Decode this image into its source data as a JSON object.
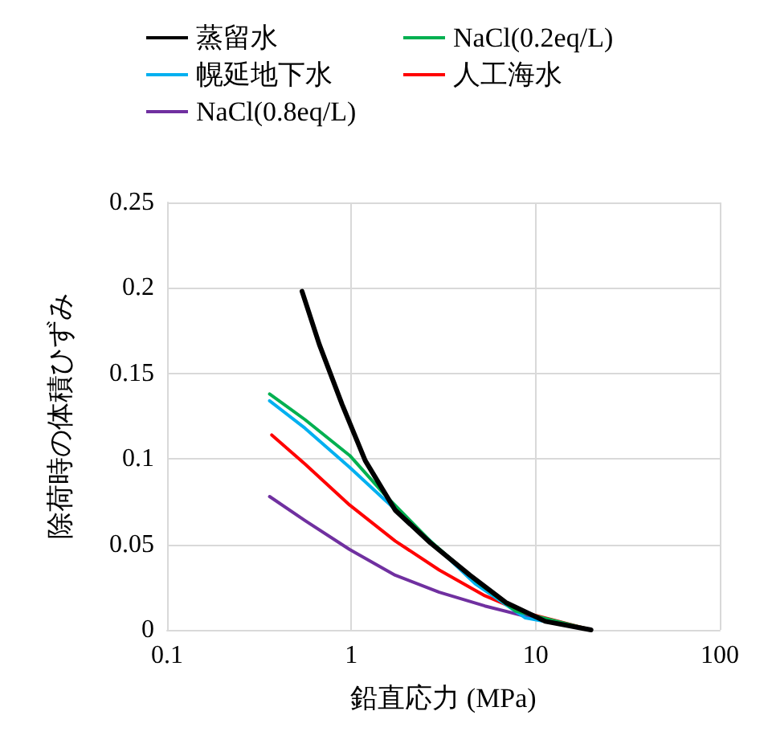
{
  "chart_data": {
    "type": "line",
    "xlabel": "鉛直応力 (MPa)",
    "ylabel": "除荷時の体積ひずみ",
    "log": "x",
    "grid": true,
    "legend": "top",
    "marker": "none",
    "line_style": "solid",
    "xlim": [
      0.1,
      100
    ],
    "xticks": [
      0.1,
      1,
      10,
      100
    ],
    "ylim": [
      0,
      0.25
    ],
    "yticks": [
      0,
      0.05,
      0.1,
      0.15,
      0.2,
      0.25
    ],
    "series": [
      {
        "name": "蒸留水",
        "color": "#000000",
        "x": [
          0.54,
          0.67,
          0.89,
          1.19,
          1.73,
          2.68,
          4.4,
          6.9,
          11.3,
          20
        ],
        "values": [
          0.198,
          0.167,
          0.132,
          0.099,
          0.07,
          0.051,
          0.032,
          0.016,
          0.005,
          0
        ]
      },
      {
        "name": "NaCl(0.2eq/L)",
        "color": "#00b050",
        "x": [
          0.36,
          0.56,
          0.98,
          1.52,
          2.68,
          4.7,
          7.8,
          20
        ],
        "values": [
          0.138,
          0.123,
          0.102,
          0.079,
          0.052,
          0.029,
          0.011,
          0
        ]
      },
      {
        "name": "幌延地下水",
        "color": "#00b0f0",
        "x": [
          0.36,
          0.56,
          0.98,
          1.52,
          2.68,
          4.7,
          8.8,
          20
        ],
        "values": [
          0.134,
          0.118,
          0.095,
          0.076,
          0.052,
          0.027,
          0.007,
          0
        ]
      },
      {
        "name": "人工海水",
        "color": "#ff0000",
        "x": [
          0.37,
          0.56,
          0.98,
          1.73,
          3.0,
          5.3,
          8.8,
          20
        ],
        "values": [
          0.114,
          0.097,
          0.073,
          0.052,
          0.035,
          0.02,
          0.01,
          0
        ]
      },
      {
        "name": "NaCl(0.8eq/L)",
        "color": "#7030a0",
        "x": [
          0.36,
          0.56,
          0.98,
          1.73,
          3.0,
          5.3,
          8.8,
          20
        ],
        "values": [
          0.078,
          0.064,
          0.047,
          0.032,
          0.022,
          0.014,
          0.008,
          0
        ]
      }
    ]
  }
}
